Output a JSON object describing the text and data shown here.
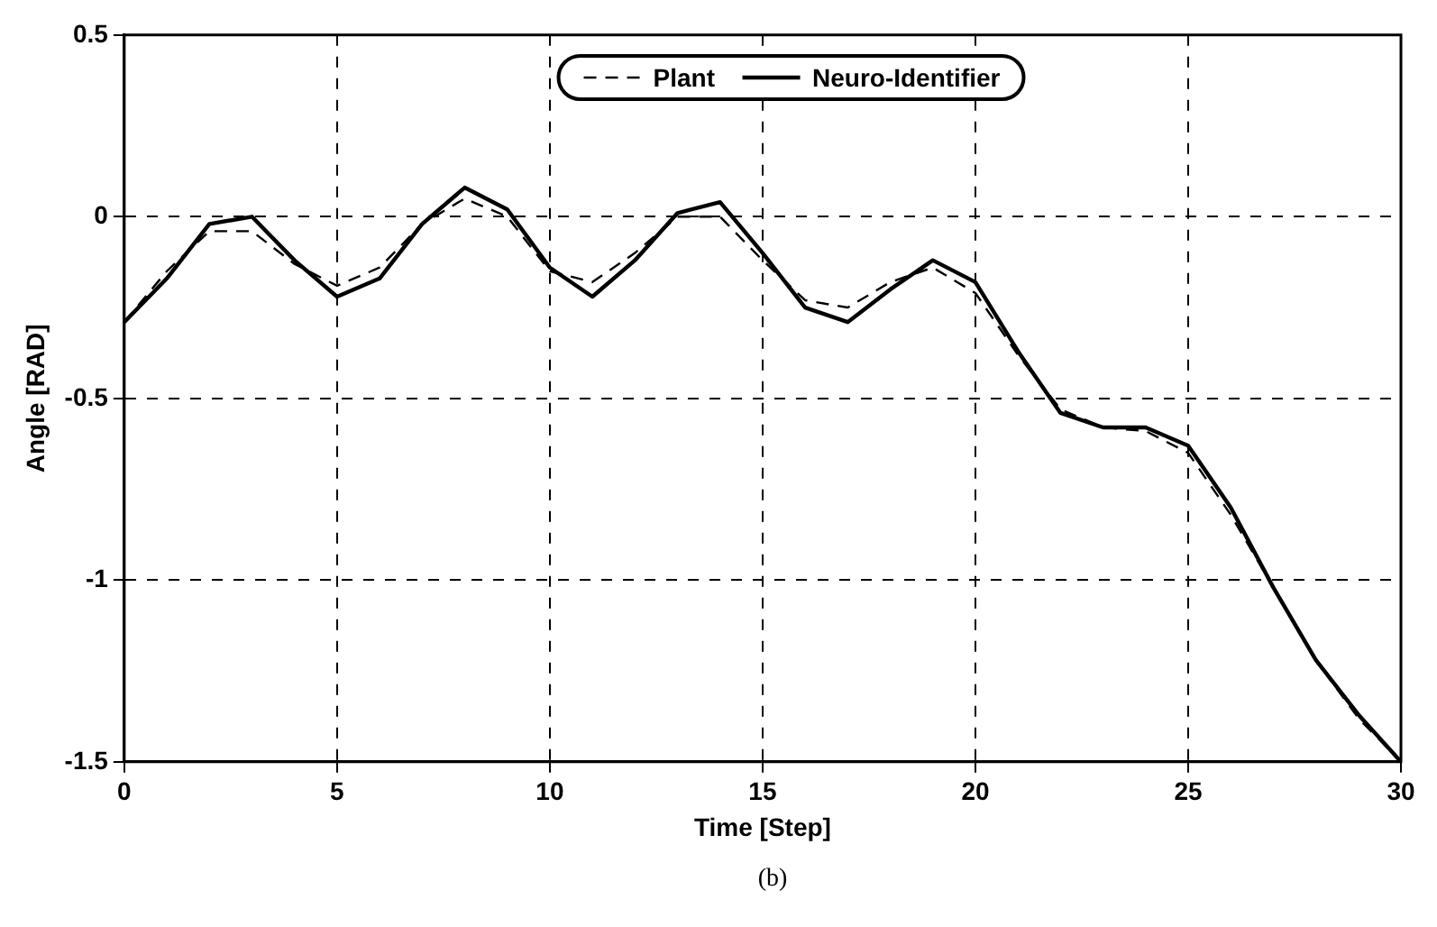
{
  "chart_data": {
    "type": "line",
    "xlabel": "Time [Step]",
    "ylabel": "Angle [RAD]",
    "annotations": [
      "(b)"
    ],
    "x": [
      0,
      1,
      2,
      3,
      4,
      5,
      6,
      7,
      8,
      9,
      10,
      11,
      12,
      13,
      14,
      15,
      16,
      17,
      18,
      19,
      20,
      21,
      22,
      23,
      24,
      25,
      26,
      27,
      28,
      29,
      30
    ],
    "series": [
      {
        "name": "Plant",
        "color": "#000000",
        "line_style": "dashed",
        "values": [
          -0.29,
          -0.15,
          -0.04,
          -0.04,
          -0.13,
          -0.19,
          -0.14,
          -0.02,
          0.05,
          0.0,
          -0.15,
          -0.18,
          -0.1,
          0.0,
          0.0,
          -0.12,
          -0.23,
          -0.25,
          -0.18,
          -0.14,
          -0.21,
          -0.38,
          -0.53,
          -0.58,
          -0.59,
          -0.65,
          -0.82,
          -1.02,
          -1.22,
          -1.38,
          -1.5
        ]
      },
      {
        "name": "Neuro-Identifier",
        "color": "#000000",
        "line_style": "solid",
        "values": [
          -0.29,
          -0.17,
          -0.02,
          0.0,
          -0.12,
          -0.22,
          -0.17,
          -0.02,
          0.08,
          0.02,
          -0.14,
          -0.22,
          -0.12,
          0.01,
          0.04,
          -0.1,
          -0.25,
          -0.29,
          -0.2,
          -0.12,
          -0.18,
          -0.37,
          -0.54,
          -0.58,
          -0.58,
          -0.63,
          -0.8,
          -1.02,
          -1.22,
          -1.37,
          -1.5
        ]
      }
    ],
    "xlim": [
      0,
      30
    ],
    "xticks": [
      0,
      5,
      10,
      15,
      20,
      25,
      30
    ],
    "ylim": [
      -1.5,
      0.5
    ],
    "yticks": [
      -1.5,
      -1,
      -0.5,
      0,
      0.5
    ],
    "grid": true,
    "legend": "top",
    "marker": "none"
  }
}
